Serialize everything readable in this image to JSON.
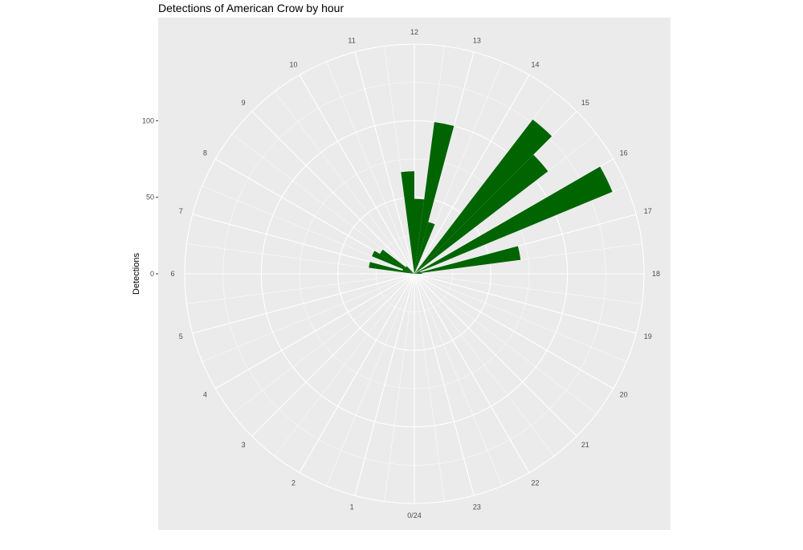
{
  "chart_data": {
    "type": "bar",
    "polar": true,
    "title": "Detections of American Crow by hour",
    "xlabel": "",
    "ylabel": "Detections",
    "x_tick_labels": [
      "0/24",
      "1",
      "2",
      "3",
      "4",
      "5",
      "6",
      "7",
      "8",
      "9",
      "10",
      "11",
      "12",
      "13",
      "14",
      "15",
      "16",
      "17",
      "18",
      "19",
      "20",
      "21",
      "22",
      "23"
    ],
    "y_ticks": [
      0,
      50,
      100
    ],
    "y_max": 150,
    "bar_color": "#006400",
    "panel_color": "#ebebeb",
    "grid_color": "#ffffff",
    "grid": true,
    "bars": [
      {
        "x": 6.75,
        "value": 30
      },
      {
        "x": 7.25,
        "value": 8
      },
      {
        "x": 7.75,
        "value": 30
      },
      {
        "x": 8.25,
        "value": 26
      },
      {
        "x": 8.75,
        "value": 7
      },
      {
        "x": 11.75,
        "value": 67
      },
      {
        "x": 12.25,
        "value": 49
      },
      {
        "x": 12.75,
        "value": 100
      },
      {
        "x": 13.25,
        "value": 35
      },
      {
        "x": 14.75,
        "value": 127
      },
      {
        "x": 15.25,
        "value": 110
      },
      {
        "x": 16.25,
        "value": 140
      },
      {
        "x": 16.75,
        "value": 4
      },
      {
        "x": 17.25,
        "value": 70
      },
      {
        "x": 17.75,
        "value": 5
      }
    ]
  }
}
